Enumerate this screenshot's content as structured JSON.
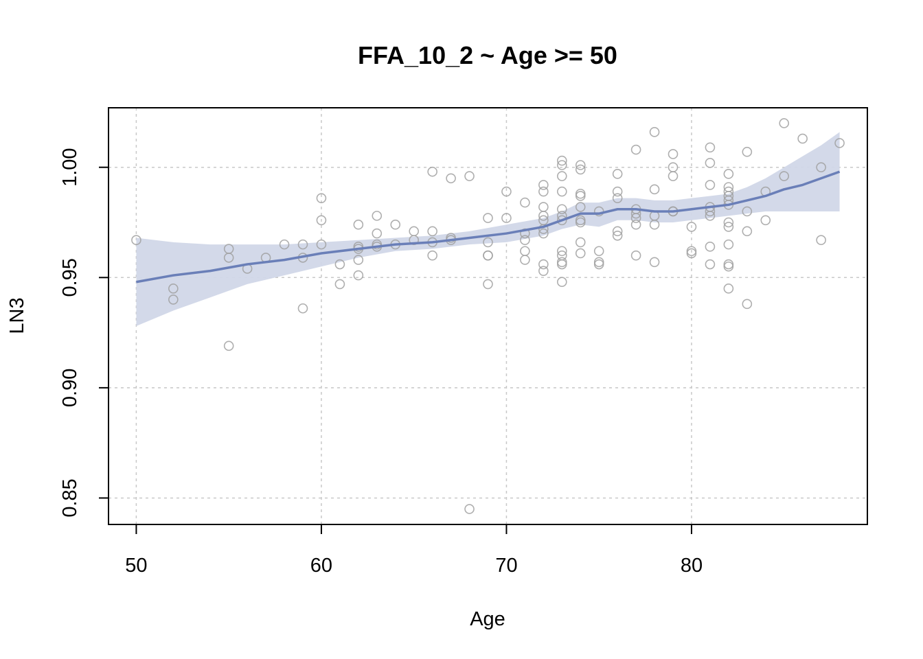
{
  "chart_data": {
    "type": "scatter",
    "title": "FFA_10_2 ~ Age >= 50",
    "xlabel": "Age",
    "ylabel": "LN3",
    "xlim": [
      48.5,
      89.5
    ],
    "ylim": [
      0.838,
      1.027
    ],
    "x_ticks": [
      50,
      60,
      70,
      80
    ],
    "y_ticks": [
      0.85,
      0.9,
      0.95,
      1.0
    ],
    "x_tick_labels": [
      "50",
      "60",
      "70",
      "80"
    ],
    "y_tick_labels": [
      "0.85",
      "0.90",
      "0.95",
      "1.00"
    ],
    "grid": true,
    "legend": "none",
    "colors": {
      "points": "#a0a0a0",
      "smooth_line": "#6a7fb8",
      "confidence_band": "#d1d7e8",
      "grid": "#c8c8c8",
      "frame": "#000000"
    },
    "points": [
      [
        50,
        0.967
      ],
      [
        52,
        0.945
      ],
      [
        52,
        0.94
      ],
      [
        55,
        0.963
      ],
      [
        55,
        0.959
      ],
      [
        55,
        0.919
      ],
      [
        56,
        0.954
      ],
      [
        57,
        0.959
      ],
      [
        58,
        0.965
      ],
      [
        59,
        0.965
      ],
      [
        59,
        0.959
      ],
      [
        59,
        0.936
      ],
      [
        60,
        0.986
      ],
      [
        60,
        0.976
      ],
      [
        60,
        0.965
      ],
      [
        61,
        0.956
      ],
      [
        61,
        0.947
      ],
      [
        62,
        0.974
      ],
      [
        62,
        0.964
      ],
      [
        62,
        0.963
      ],
      [
        62,
        0.958
      ],
      [
        62,
        0.951
      ],
      [
        63,
        0.978
      ],
      [
        63,
        0.97
      ],
      [
        63,
        0.965
      ],
      [
        63,
        0.964
      ],
      [
        64,
        0.974
      ],
      [
        64,
        0.965
      ],
      [
        65,
        0.971
      ],
      [
        65,
        0.967
      ],
      [
        66,
        0.998
      ],
      [
        66,
        0.971
      ],
      [
        66,
        0.966
      ],
      [
        66,
        0.96
      ],
      [
        67,
        0.995
      ],
      [
        67,
        0.968
      ],
      [
        67,
        0.967
      ],
      [
        68,
        0.996
      ],
      [
        68,
        0.845
      ],
      [
        69,
        0.977
      ],
      [
        69,
        0.966
      ],
      [
        69,
        0.96
      ],
      [
        69,
        0.96
      ],
      [
        69,
        0.947
      ],
      [
        70,
        0.989
      ],
      [
        70,
        0.977
      ],
      [
        71,
        0.984
      ],
      [
        71,
        0.97
      ],
      [
        71,
        0.967
      ],
      [
        71,
        0.962
      ],
      [
        71,
        0.958
      ],
      [
        72,
        0.992
      ],
      [
        72,
        0.989
      ],
      [
        72,
        0.982
      ],
      [
        72,
        0.978
      ],
      [
        72,
        0.976
      ],
      [
        72,
        0.972
      ],
      [
        72,
        0.97
      ],
      [
        72,
        0.956
      ],
      [
        72,
        0.953
      ],
      [
        73,
        1.003
      ],
      [
        73,
        1.001
      ],
      [
        73,
        0.996
      ],
      [
        73,
        0.989
      ],
      [
        73,
        0.981
      ],
      [
        73,
        0.978
      ],
      [
        73,
        0.976
      ],
      [
        73,
        0.962
      ],
      [
        73,
        0.96
      ],
      [
        73,
        0.957
      ],
      [
        73,
        0.956
      ],
      [
        73,
        0.948
      ],
      [
        74,
        1.001
      ],
      [
        74,
        0.999
      ],
      [
        74,
        0.988
      ],
      [
        74,
        0.987
      ],
      [
        74,
        0.982
      ],
      [
        74,
        0.976
      ],
      [
        74,
        0.975
      ],
      [
        74,
        0.966
      ],
      [
        74,
        0.961
      ],
      [
        75,
        0.98
      ],
      [
        75,
        0.962
      ],
      [
        75,
        0.957
      ],
      [
        75,
        0.956
      ],
      [
        76,
        0.997
      ],
      [
        76,
        0.989
      ],
      [
        76,
        0.986
      ],
      [
        76,
        0.971
      ],
      [
        76,
        0.969
      ],
      [
        77,
        1.008
      ],
      [
        77,
        0.981
      ],
      [
        77,
        0.979
      ],
      [
        77,
        0.977
      ],
      [
        77,
        0.974
      ],
      [
        77,
        0.96
      ],
      [
        78,
        1.016
      ],
      [
        78,
        0.99
      ],
      [
        78,
        0.978
      ],
      [
        78,
        0.974
      ],
      [
        78,
        0.957
      ],
      [
        79,
        1.006
      ],
      [
        79,
        1.0
      ],
      [
        79,
        0.996
      ],
      [
        79,
        0.98
      ],
      [
        79,
        0.98
      ],
      [
        80,
        0.973
      ],
      [
        80,
        0.962
      ],
      [
        80,
        0.961
      ],
      [
        81,
        1.009
      ],
      [
        81,
        1.002
      ],
      [
        81,
        0.992
      ],
      [
        81,
        0.982
      ],
      [
        81,
        0.98
      ],
      [
        81,
        0.978
      ],
      [
        81,
        0.964
      ],
      [
        81,
        0.956
      ],
      [
        82,
        0.997
      ],
      [
        82,
        0.991
      ],
      [
        82,
        0.989
      ],
      [
        82,
        0.987
      ],
      [
        82,
        0.985
      ],
      [
        82,
        0.983
      ],
      [
        82,
        0.975
      ],
      [
        82,
        0.973
      ],
      [
        82,
        0.965
      ],
      [
        82,
        0.956
      ],
      [
        82,
        0.955
      ],
      [
        82,
        0.945
      ],
      [
        83,
        1.007
      ],
      [
        83,
        0.98
      ],
      [
        83,
        0.971
      ],
      [
        83,
        0.938
      ],
      [
        84,
        0.989
      ],
      [
        84,
        0.976
      ],
      [
        85,
        1.02
      ],
      [
        85,
        0.996
      ],
      [
        86,
        1.013
      ],
      [
        87,
        1.0
      ],
      [
        87,
        0.967
      ],
      [
        88,
        1.011
      ]
    ],
    "smooth": {
      "x": [
        50,
        52,
        54,
        56,
        58,
        60,
        62,
        64,
        66,
        68,
        70,
        72,
        73,
        74,
        75,
        76,
        77,
        78,
        79,
        80,
        81,
        82,
        83,
        84,
        85,
        86,
        87,
        88
      ],
      "y": [
        0.948,
        0.951,
        0.953,
        0.956,
        0.958,
        0.961,
        0.963,
        0.965,
        0.966,
        0.968,
        0.97,
        0.973,
        0.976,
        0.979,
        0.979,
        0.981,
        0.981,
        0.98,
        0.98,
        0.981,
        0.982,
        0.983,
        0.985,
        0.987,
        0.99,
        0.992,
        0.995,
        0.998
      ],
      "lower": [
        0.928,
        0.935,
        0.941,
        0.947,
        0.951,
        0.955,
        0.959,
        0.962,
        0.963,
        0.965,
        0.966,
        0.969,
        0.972,
        0.974,
        0.973,
        0.976,
        0.976,
        0.975,
        0.975,
        0.976,
        0.977,
        0.978,
        0.979,
        0.98,
        0.98,
        0.98,
        0.98,
        0.98
      ],
      "upper": [
        0.968,
        0.966,
        0.965,
        0.965,
        0.965,
        0.966,
        0.967,
        0.968,
        0.969,
        0.971,
        0.974,
        0.977,
        0.98,
        0.984,
        0.984,
        0.986,
        0.986,
        0.985,
        0.985,
        0.986,
        0.987,
        0.988,
        0.991,
        0.995,
        1.0,
        1.005,
        1.01,
        1.016
      ]
    }
  }
}
